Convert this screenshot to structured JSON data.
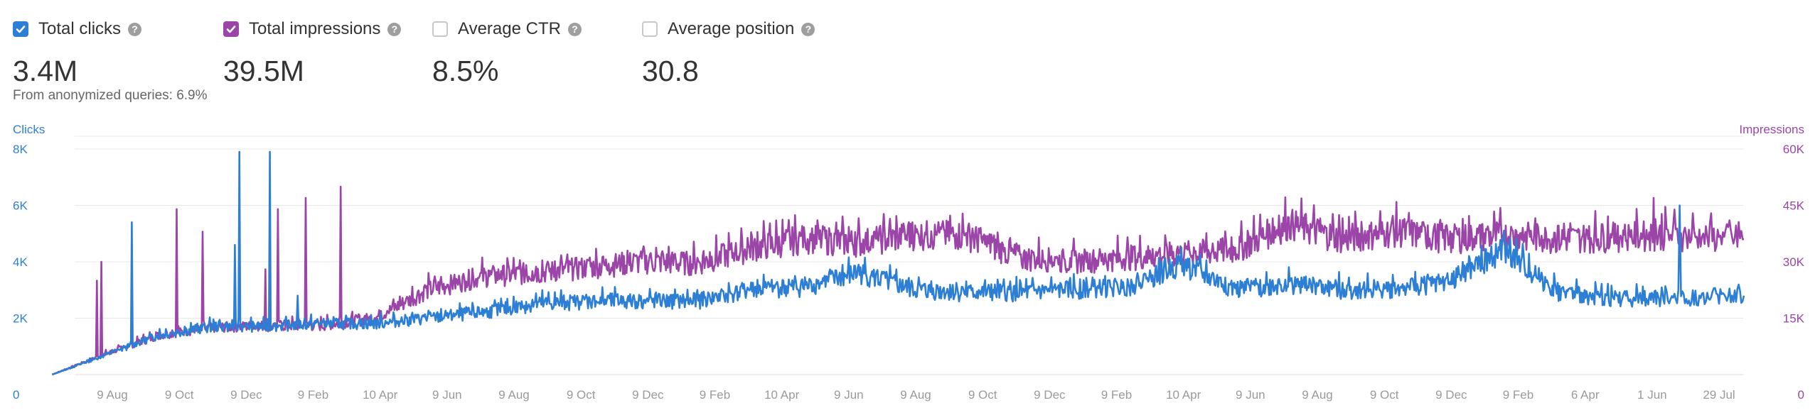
{
  "metrics": [
    {
      "label": "Total clicks",
      "value": "3.4M",
      "checked": true,
      "color": "#2d7fd6"
    },
    {
      "label": "Total impressions",
      "value": "39.5M",
      "checked": true,
      "color": "#9b45a8"
    },
    {
      "label": "Average CTR",
      "value": "8.5%",
      "checked": false,
      "color": "#c9c9c9"
    },
    {
      "label": "Average position",
      "value": "30.8",
      "checked": false,
      "color": "#c9c9c9"
    }
  ],
  "help_icon": "?",
  "anonymized_note": "From anonymized queries: 6.9%",
  "chart_data": {
    "type": "line",
    "left_axis": {
      "label": "Clicks",
      "ticks": [
        "0",
        "2K",
        "4K",
        "6K",
        "8K"
      ],
      "tick_values": [
        0,
        2000,
        4000,
        6000,
        8000
      ],
      "max": 8000,
      "color": "#2d7fd6"
    },
    "right_axis": {
      "label": "Impressions",
      "ticks": [
        "0",
        "15K",
        "30K",
        "45K",
        "60K"
      ],
      "tick_values": [
        0,
        15000,
        30000,
        45000,
        60000
      ],
      "max": 60000,
      "color": "#9b45a8"
    },
    "x_ticks": [
      "9 Aug",
      "9 Oct",
      "9 Dec",
      "9 Feb",
      "10 Apr",
      "9 Jun",
      "9 Aug",
      "9 Oct",
      "9 Dec",
      "9 Feb",
      "10 Apr",
      "9 Jun",
      "9 Aug",
      "9 Oct",
      "9 Dec",
      "9 Feb",
      "10 Apr",
      "9 Jun",
      "9 Aug",
      "9 Oct",
      "9 Dec",
      "9 Feb",
      "6 Apr",
      "1 Jun",
      "29 Jul"
    ],
    "grid": true,
    "series": [
      {
        "name": "Clicks",
        "axis": "left",
        "color": "#2d7fd6",
        "x": [
          "9 Jun",
          "9 Aug",
          "9 Oct",
          "9 Dec",
          "9 Feb",
          "10 Apr",
          "9 Jun",
          "9 Aug",
          "9 Oct",
          "9 Dec",
          "9 Feb",
          "10 Apr",
          "9 Jun",
          "9 Aug",
          "9 Oct",
          "9 Dec",
          "9 Feb",
          "10 Apr",
          "9 Jun",
          "9 Aug",
          "9 Oct",
          "9 Dec",
          "9 Feb",
          "10 Apr",
          "9 Jun",
          "9 Aug",
          "9 Oct",
          "9 Dec",
          "9 Feb",
          "6 Apr",
          "1 Jun",
          "29 Jul"
        ],
        "values": [
          0,
          700,
          1400,
          1700,
          1700,
          1800,
          1800,
          2000,
          2200,
          2500,
          2600,
          2600,
          2600,
          3000,
          3100,
          3600,
          3000,
          2900,
          2900,
          3000,
          3100,
          3900,
          3000,
          3200,
          3000,
          3000,
          3300,
          4400,
          2900,
          2700,
          2700,
          2800
        ],
        "spikes": [
          {
            "x": "9 Feb",
            "value": 2800
          },
          {
            "x": "9 Aug",
            "value": 5400
          },
          {
            "x": "9 Dec",
            "value": 4600
          },
          {
            "x": "9 Dec",
            "value": 7900
          },
          {
            "x": "9 Dec",
            "value": 7900
          },
          {
            "x": "1 Jun",
            "value": 6000
          }
        ]
      },
      {
        "name": "Impressions",
        "axis": "right",
        "color": "#9b45a8",
        "x": [
          "9 Jun",
          "9 Aug",
          "9 Oct",
          "9 Dec",
          "9 Feb",
          "10 Apr",
          "9 Jun",
          "9 Aug",
          "9 Oct",
          "9 Dec",
          "9 Feb",
          "10 Apr",
          "9 Jun",
          "9 Aug",
          "9 Oct",
          "9 Dec",
          "9 Feb",
          "10 Apr",
          "9 Jun",
          "9 Aug",
          "9 Oct",
          "9 Dec",
          "9 Feb",
          "10 Apr",
          "9 Jun",
          "9 Aug",
          "9 Oct",
          "9 Dec",
          "9 Feb",
          "6 Apr",
          "1 Jun",
          "29 Jul"
        ],
        "values": [
          0,
          5500,
          10500,
          12500,
          13000,
          13000,
          15000,
          22500,
          26000,
          27000,
          28500,
          30000,
          29500,
          33500,
          36000,
          35000,
          37000,
          37000,
          31000,
          30000,
          31000,
          32000,
          33000,
          40000,
          36000,
          38000,
          36000,
          37000,
          36000,
          36500,
          37000,
          36000
        ],
        "spikes": [
          {
            "x": "9 Aug",
            "value": 25000
          },
          {
            "x": "9 Dec",
            "value": 28000
          },
          {
            "x": "9 Aug",
            "value": 30000
          },
          {
            "x": "9 Oct",
            "value": 38000
          },
          {
            "x": "9 Feb",
            "value": 47000
          },
          {
            "x": "9 Feb",
            "value": 50000
          },
          {
            "x": "9 Oct",
            "value": 44000
          },
          {
            "x": "9 Dec",
            "value": 44000
          },
          {
            "x": "1 Jun",
            "value": 47000
          }
        ]
      }
    ]
  }
}
